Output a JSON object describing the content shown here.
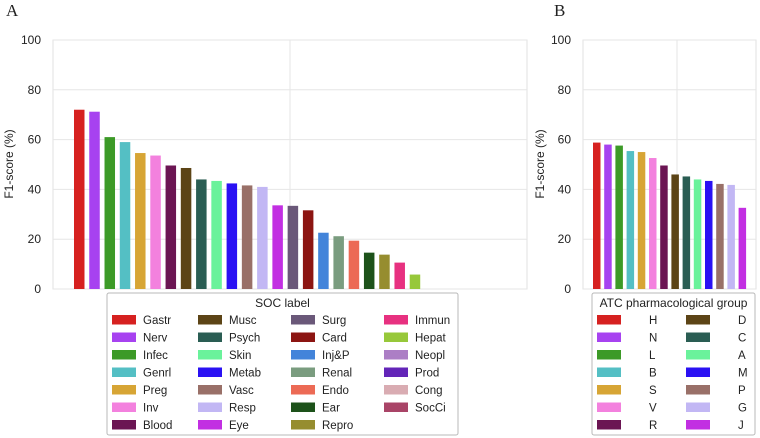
{
  "chart_data": [
    {
      "type": "bar",
      "panel_label": "A",
      "ylabel": "F1-score (%)",
      "ylim": [
        0,
        100
      ],
      "yticks": [
        0,
        20,
        40,
        60,
        80,
        100
      ],
      "grid": true,
      "legend_title": "SOC label",
      "legend_position": "bottom",
      "categories": [
        "Gastr",
        "Nerv",
        "Infec",
        "Genrl",
        "Preg",
        "Inv",
        "Blood",
        "Musc",
        "Psych",
        "Skin",
        "Metab",
        "Vasc",
        "Resp",
        "Eye",
        "Surg",
        "Card",
        "Inj&P",
        "Renal",
        "Endo",
        "Ear",
        "Repro",
        "Immun",
        "Hepat",
        "Neopl",
        "Prod",
        "Cong",
        "SocCi"
      ],
      "values": [
        72,
        71.2,
        61,
        59,
        54.6,
        53.6,
        49.6,
        48.6,
        44,
        43.4,
        42.4,
        41.6,
        41,
        33.6,
        33.4,
        31.6,
        22.6,
        21.2,
        19.4,
        14.6,
        13.8,
        10.6,
        5.8,
        0,
        0,
        0,
        0
      ],
      "colors": [
        "#d62120",
        "#a742f0",
        "#3c9a27",
        "#54bfc4",
        "#d7a535",
        "#f381de",
        "#6b1553",
        "#5c4416",
        "#2a5d53",
        "#6af29b",
        "#2a11f3",
        "#997068",
        "#c2b7f4",
        "#c22fe2",
        "#6a5879",
        "#8c1512",
        "#4384da",
        "#7a9c7f",
        "#ec6a55",
        "#1d521a",
        "#968d2f",
        "#e73180",
        "#97c83a",
        "#ac7ec5",
        "#6325b8",
        "#d9acb2",
        "#a94467"
      ]
    },
    {
      "type": "bar",
      "panel_label": "B",
      "ylabel": "F1-score (%)",
      "ylim": [
        0,
        100
      ],
      "yticks": [
        0,
        20,
        40,
        60,
        80,
        100
      ],
      "grid": true,
      "legend_title": "ATC pharmacological group",
      "legend_position": "bottom",
      "categories": [
        "H",
        "N",
        "L",
        "B",
        "S",
        "V",
        "R",
        "D",
        "C",
        "A",
        "M",
        "P",
        "G",
        "J"
      ],
      "values": [
        58.8,
        58,
        57.6,
        55.4,
        55,
        52.6,
        49.6,
        46,
        45.2,
        44,
        43.4,
        42.2,
        41.8,
        32.6
      ],
      "colors": [
        "#d62120",
        "#a742f0",
        "#3c9a27",
        "#54bfc4",
        "#d7a535",
        "#f381de",
        "#6b1553",
        "#5c4416",
        "#2a5d53",
        "#6af29b",
        "#2a11f3",
        "#997068",
        "#c2b7f4",
        "#c22fe2"
      ]
    }
  ]
}
